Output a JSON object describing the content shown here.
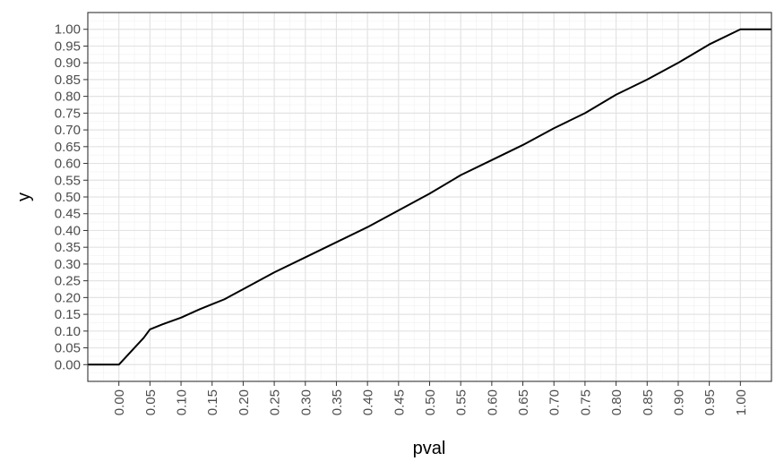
{
  "chart_data": {
    "type": "line",
    "xlabel": "pval",
    "ylabel": "y",
    "xlim": [
      -0.05,
      1.05
    ],
    "ylim": [
      -0.05,
      1.05
    ],
    "grid": true,
    "x_ticks": [
      "0.00",
      "0.05",
      "0.10",
      "0.15",
      "0.20",
      "0.25",
      "0.30",
      "0.35",
      "0.40",
      "0.45",
      "0.50",
      "0.55",
      "0.60",
      "0.65",
      "0.70",
      "0.75",
      "0.80",
      "0.85",
      "0.90",
      "0.95",
      "1.00"
    ],
    "y_ticks": [
      "0.00",
      "0.05",
      "0.10",
      "0.15",
      "0.20",
      "0.25",
      "0.30",
      "0.35",
      "0.40",
      "0.45",
      "0.50",
      "0.55",
      "0.60",
      "0.65",
      "0.70",
      "0.75",
      "0.80",
      "0.85",
      "0.90",
      "0.95",
      "1.00"
    ],
    "series": [
      {
        "color": "#000000",
        "x": [
          -0.05,
          0.0,
          0.01,
          0.02,
          0.03,
          0.04,
          0.05,
          0.07,
          0.1,
          0.13,
          0.15,
          0.17,
          0.2,
          0.25,
          0.3,
          0.35,
          0.4,
          0.45,
          0.5,
          0.55,
          0.6,
          0.65,
          0.7,
          0.75,
          0.8,
          0.85,
          0.9,
          0.95,
          1.0,
          1.05
        ],
        "y": [
          0.0,
          0.0,
          0.02,
          0.04,
          0.06,
          0.08,
          0.105,
          0.12,
          0.14,
          0.165,
          0.18,
          0.195,
          0.225,
          0.275,
          0.32,
          0.365,
          0.41,
          0.46,
          0.51,
          0.565,
          0.61,
          0.655,
          0.705,
          0.75,
          0.805,
          0.85,
          0.9,
          0.955,
          1.0,
          1.0
        ]
      }
    ]
  }
}
